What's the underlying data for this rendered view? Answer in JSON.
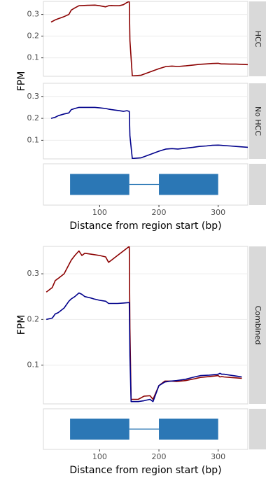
{
  "figure_top": {
    "chart_data": {
      "type": "line",
      "xlabel": "Distance from region start (bp)",
      "ylabel": "FPM",
      "xlim": [
        5,
        350
      ],
      "x_ticks": [
        100,
        200,
        300
      ],
      "panels": [
        {
          "strip": "HCC",
          "ylim": [
            0.015,
            0.36
          ],
          "y_ticks": [
            0.1,
            0.2,
            0.3
          ],
          "series": [
            {
              "color": "#8b0000",
              "x": [
                18,
                25,
                30,
                40,
                48,
                52,
                58,
                65,
                80,
                92,
                100,
                110,
                115,
                120,
                125,
                133,
                140,
                146,
                150,
                151,
                155,
                170,
                185,
                200,
                212,
                222,
                232,
                245,
                258,
                268,
                280,
                290,
                300,
                305,
                310,
                320,
                330,
                340,
                350
              ],
              "y": [
                0.265,
                0.275,
                0.28,
                0.29,
                0.3,
                0.32,
                0.33,
                0.34,
                0.342,
                0.343,
                0.34,
                0.335,
                0.34,
                0.341,
                0.34,
                0.34,
                0.345,
                0.355,
                0.36,
                0.18,
                0.017,
                0.02,
                0.035,
                0.05,
                0.06,
                0.062,
                0.06,
                0.063,
                0.067,
                0.07,
                0.072,
                0.074,
                0.075,
                0.072,
                0.072,
                0.071,
                0.071,
                0.07,
                0.069
              ]
            }
          ]
        },
        {
          "strip": "No HCC",
          "ylim": [
            0.015,
            0.36
          ],
          "y_ticks": [
            0.1,
            0.2,
            0.3
          ],
          "series": [
            {
              "color": "#00008b",
              "x": [
                18,
                25,
                30,
                40,
                48,
                52,
                58,
                65,
                80,
                92,
                100,
                110,
                115,
                120,
                125,
                133,
                140,
                146,
                150,
                151,
                155,
                170,
                185,
                200,
                212,
                222,
                232,
                245,
                258,
                268,
                280,
                290,
                300,
                305,
                310,
                320,
                330,
                340,
                350
              ],
              "y": [
                0.2,
                0.205,
                0.212,
                0.22,
                0.225,
                0.24,
                0.245,
                0.25,
                0.25,
                0.25,
                0.248,
                0.245,
                0.242,
                0.24,
                0.238,
                0.235,
                0.232,
                0.235,
                0.232,
                0.12,
                0.017,
                0.02,
                0.035,
                0.05,
                0.06,
                0.062,
                0.06,
                0.064,
                0.068,
                0.072,
                0.074,
                0.077,
                0.078,
                0.077,
                0.076,
                0.074,
                0.072,
                0.07,
                0.068
              ]
            }
          ]
        }
      ],
      "gene_model": {
        "exons": [
          [
            50,
            150
          ],
          [
            200,
            300
          ]
        ],
        "intron": [
          150,
          200
        ],
        "color": "#2b77b5"
      }
    }
  },
  "figure_bottom": {
    "chart_data": {
      "type": "line",
      "xlabel": "Distance from region start (bp)",
      "ylabel": "FPM",
      "xlim": [
        5,
        350
      ],
      "x_ticks": [
        100,
        200,
        300
      ],
      "panels": [
        {
          "strip": "Combined",
          "ylim": [
            0.015,
            0.36
          ],
          "y_ticks": [
            0.1,
            0.2,
            0.3
          ],
          "series": [
            {
              "color": "#8b0000",
              "x": [
                10,
                20,
                25,
                30,
                40,
                48,
                52,
                58,
                65,
                70,
                75,
                85,
                90,
                100,
                110,
                115,
                120,
                130,
                140,
                150,
                151,
                153,
                165,
                175,
                185,
                190,
                200,
                210,
                220,
                230,
                245,
                260,
                270,
                285,
                300,
                303,
                306,
                310,
                320,
                330,
                340
              ],
              "y": [
                0.26,
                0.27,
                0.285,
                0.29,
                0.3,
                0.32,
                0.33,
                0.34,
                0.35,
                0.34,
                0.345,
                0.343,
                0.342,
                0.34,
                0.337,
                0.325,
                0.33,
                0.34,
                0.35,
                0.36,
                0.18,
                0.025,
                0.025,
                0.032,
                0.033,
                0.025,
                0.055,
                0.065,
                0.065,
                0.064,
                0.066,
                0.07,
                0.073,
                0.075,
                0.077,
                0.074,
                0.075,
                0.074,
                0.073,
                0.072,
                0.071
              ]
            },
            {
              "color": "#00008b",
              "x": [
                10,
                20,
                25,
                30,
                40,
                48,
                52,
                58,
                65,
                70,
                75,
                85,
                90,
                100,
                110,
                115,
                120,
                130,
                140,
                150,
                151,
                153,
                165,
                175,
                185,
                190,
                200,
                210,
                220,
                230,
                245,
                260,
                270,
                285,
                300,
                303,
                306,
                310,
                320,
                330,
                340
              ],
              "y": [
                0.2,
                0.203,
                0.212,
                0.215,
                0.225,
                0.24,
                0.245,
                0.25,
                0.258,
                0.255,
                0.25,
                0.247,
                0.245,
                0.242,
                0.24,
                0.235,
                0.235,
                0.235,
                0.236,
                0.237,
                0.12,
                0.02,
                0.02,
                0.022,
                0.025,
                0.02,
                0.055,
                0.063,
                0.065,
                0.066,
                0.069,
                0.074,
                0.077,
                0.078,
                0.08,
                0.082,
                0.08,
                0.08,
                0.078,
                0.076,
                0.074
              ]
            }
          ]
        }
      ],
      "gene_model": {
        "exons": [
          [
            50,
            150
          ],
          [
            200,
            300
          ]
        ],
        "intron": [
          150,
          200
        ],
        "color": "#2b77b5"
      }
    }
  }
}
